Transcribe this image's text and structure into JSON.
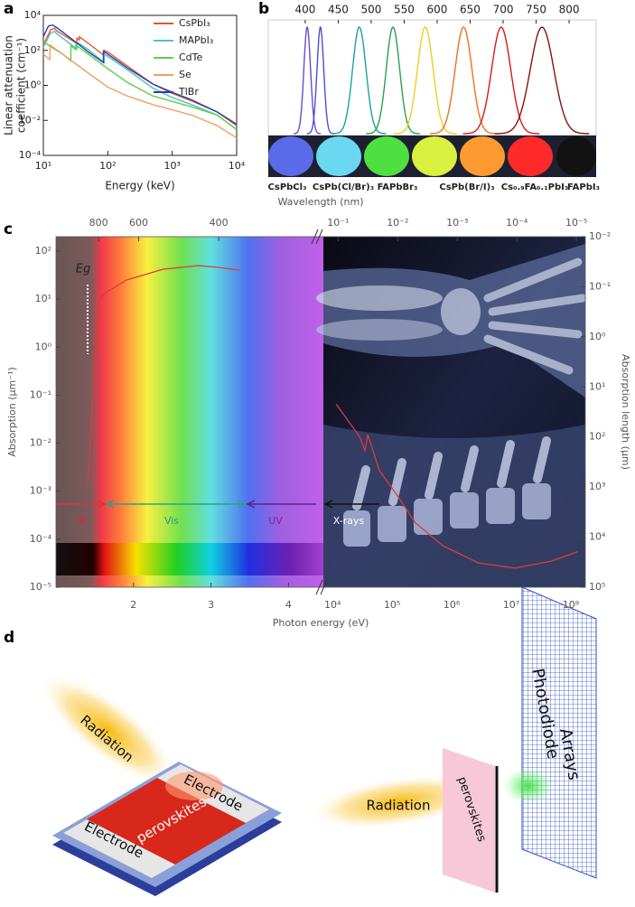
{
  "panel_labels": [
    "a",
    "b",
    "c",
    "d"
  ],
  "chart_data": [
    {
      "type": "line",
      "xlabel": "Energy (keV)",
      "ylabel": [
        "Linear attenuation",
        "coefficient (cm⁻¹)"
      ],
      "xscale": "log",
      "yscale": "log",
      "xlim": [
        10,
        10000
      ],
      "ylim": [
        0.0001,
        10000
      ],
      "xticks": [
        {
          "value": 10,
          "label": "10¹"
        },
        {
          "value": 100,
          "label": "10²"
        },
        {
          "value": 1000,
          "label": "10³"
        },
        {
          "value": 10000,
          "label": "10⁴"
        }
      ],
      "yticks": [
        {
          "value": 0.0001,
          "label": "10⁻⁴"
        },
        {
          "value": 0.01,
          "label": "10⁻²"
        },
        {
          "value": 1,
          "label": "10⁰"
        },
        {
          "value": 100,
          "label": "10²"
        },
        {
          "value": 10000,
          "label": "10⁴"
        }
      ],
      "legend": "upper right",
      "series": [
        {
          "name": "CsPbI₃",
          "color": "#e8542a",
          "x": [
            10,
            13,
            15,
            16,
            20,
            33,
            33.2,
            36,
            36.1,
            50,
            88,
            88.1,
            100,
            200,
            500,
            1000,
            2000,
            5000,
            10000
          ],
          "values": [
            200,
            1500,
            1800,
            1300,
            800,
            250,
            500,
            400,
            600,
            250,
            50,
            100,
            80,
            13,
            1.2,
            0.35,
            0.13,
            0.03,
            0.005
          ]
        },
        {
          "name": "MAPbI₃",
          "color": "#4cc4c4",
          "x": [
            10,
            13,
            15,
            16,
            20,
            33,
            33.2,
            50,
            88,
            88.1,
            100,
            200,
            500,
            1000,
            2000,
            5000,
            10000
          ],
          "values": [
            150,
            1000,
            1200,
            900,
            500,
            120,
            300,
            110,
            20,
            60,
            45,
            8,
            0.7,
            0.2,
            0.08,
            0.02,
            0.003
          ]
        },
        {
          "name": "CdTe",
          "color": "#5fcf48",
          "x": [
            10,
            20,
            26.7,
            26.8,
            31.8,
            31.9,
            50,
            100,
            200,
            500,
            1000,
            2000,
            5000,
            10000
          ],
          "values": [
            300,
            60,
            25,
            180,
            110,
            200,
            60,
            9,
            1.5,
            0.25,
            0.12,
            0.06,
            0.02,
            0.003
          ]
        },
        {
          "name": "Se",
          "color": "#f0a060",
          "x": [
            10,
            12.6,
            12.7,
            20,
            50,
            100,
            200,
            500,
            1000,
            2000,
            5000,
            10000
          ],
          "values": [
            60,
            30,
            200,
            60,
            5,
            0.8,
            0.25,
            0.08,
            0.04,
            0.02,
            0.005,
            0.001
          ]
        },
        {
          "name": "TlBr",
          "color": "#2a40b0",
          "x": [
            10,
            12,
            14,
            16,
            20,
            30,
            50,
            85.5,
            85.6,
            100,
            200,
            500,
            1000,
            2000,
            5000,
            10000
          ],
          "values": [
            600,
            2500,
            2800,
            2000,
            1100,
            350,
            80,
            20,
            90,
            60,
            10,
            1.2,
            0.4,
            0.15,
            0.03,
            0.006
          ]
        }
      ]
    },
    {
      "type": "spectra",
      "xlim": [
        344,
        841
      ],
      "xticks": [
        400,
        450,
        500,
        550,
        600,
        650,
        700,
        750,
        800
      ],
      "peaks": [
        403,
        423,
        482,
        533,
        582,
        640,
        697,
        759
      ],
      "fwhm": [
        12,
        12,
        24,
        24,
        28,
        30,
        34,
        42
      ],
      "colors": [
        "#6a4bd0",
        "#4650d8",
        "#1aa0a0",
        "#2aa050",
        "#e8d020",
        "#f07020",
        "#d81818",
        "#8a1010"
      ],
      "sample_labels": [
        "CsPbCl₃",
        "CsPb(Cl/Br)₃",
        "FAPbBr₃",
        "CsPb(Br/I)₃",
        "Cs₀.₉FA₀.₁PbI₃",
        "FAPbI₃"
      ]
    },
    {
      "type": "broken-axis-line",
      "xlabel": "Photon energy (eV)",
      "x2label": "Wavelength (nm)",
      "ylabel": "Absorption (μm⁻¹)",
      "y2label": "Absorption length (μm)",
      "yscale": "log",
      "ylim": [
        1e-05,
        200
      ],
      "yticks": [
        {
          "value": 1e-05,
          "label": "10⁻⁵"
        },
        {
          "value": 0.0001,
          "label": "10⁻⁴"
        },
        {
          "value": 0.001,
          "label": "10⁻³"
        },
        {
          "value": 0.01,
          "label": "10⁻²"
        },
        {
          "value": 0.1,
          "label": "10⁻¹"
        },
        {
          "value": 1,
          "label": "10⁰"
        },
        {
          "value": 10,
          "label": "10¹"
        },
        {
          "value": 100,
          "label": "10²"
        }
      ],
      "y2scale": "log",
      "y2lim": [
        100000,
        0.01
      ],
      "y2ticks": [
        {
          "value": 0.01,
          "label": "10⁻²"
        },
        {
          "value": 0.1,
          "label": "10⁻¹"
        },
        {
          "value": 1,
          "label": "10⁰"
        },
        {
          "value": 10,
          "label": "10¹"
        },
        {
          "value": 100,
          "label": "10²"
        },
        {
          "value": 1000,
          "label": "10³"
        },
        {
          "value": 10000,
          "label": "10⁴"
        },
        {
          "value": 100000,
          "label": "10⁵"
        }
      ],
      "segments": [
        {
          "xscale": "linear",
          "xlim": [
            1.0,
            4.45
          ],
          "xticks": [
            2,
            3,
            4
          ],
          "x2ticks": [
            800,
            600,
            400
          ],
          "series": [
            {
              "color": "#e03a3a",
              "x": [
                1.41,
                1.44,
                1.48,
                1.56,
                1.65,
                1.91,
                2.38,
                2.84,
                3.08,
                3.37
              ],
              "values": [
                0.0014,
                0.01,
                0.13,
                10,
                14,
                25,
                42,
                50,
                46,
                40
              ]
            }
          ]
        },
        {
          "xscale": "log",
          "xlim": [
            7000,
            175000000
          ],
          "xticks": [
            {
              "value": 10000,
              "label": "10⁴"
            },
            {
              "value": 100000,
              "label": "10⁵"
            },
            {
              "value": 1000000,
              "label": "10⁶"
            },
            {
              "value": 10000000,
              "label": "10⁷"
            },
            {
              "value": 100000000,
              "label": "10⁸"
            }
          ],
          "x2ticks": [
            {
              "value": 0.1,
              "label": "10⁻¹"
            },
            {
              "value": 0.01,
              "label": "10⁻²"
            },
            {
              "value": 0.001,
              "label": "10⁻³"
            },
            {
              "value": 0.0001,
              "label": "10⁻⁴"
            },
            {
              "value": 1e-05,
              "label": "10⁻⁵"
            }
          ],
          "series": [
            {
              "color": "#e03a3a",
              "x": [
                11500,
                18000,
                28000,
                35000,
                39000,
                61000,
                123000,
                245000,
                700000,
                2800000,
                11500000,
                47000000,
                130000000
              ],
              "values": [
                0.065,
                0.03,
                0.014,
                0.007,
                0.015,
                0.0027,
                0.0008,
                0.00022,
                7.4e-05,
                3.2e-05,
                2.5e-05,
                3.5e-05,
                5.5e-05
              ]
            }
          ]
        }
      ],
      "annotations": [
        "Eg",
        "IR",
        "Vis",
        "UV",
        "X-rays"
      ]
    }
  ],
  "diagram": {
    "labels": [
      "Radiation",
      "Electrode",
      "perovskites",
      "Electrode",
      "Radiation",
      "perovskites",
      "Photodiode",
      "Arrays"
    ]
  }
}
